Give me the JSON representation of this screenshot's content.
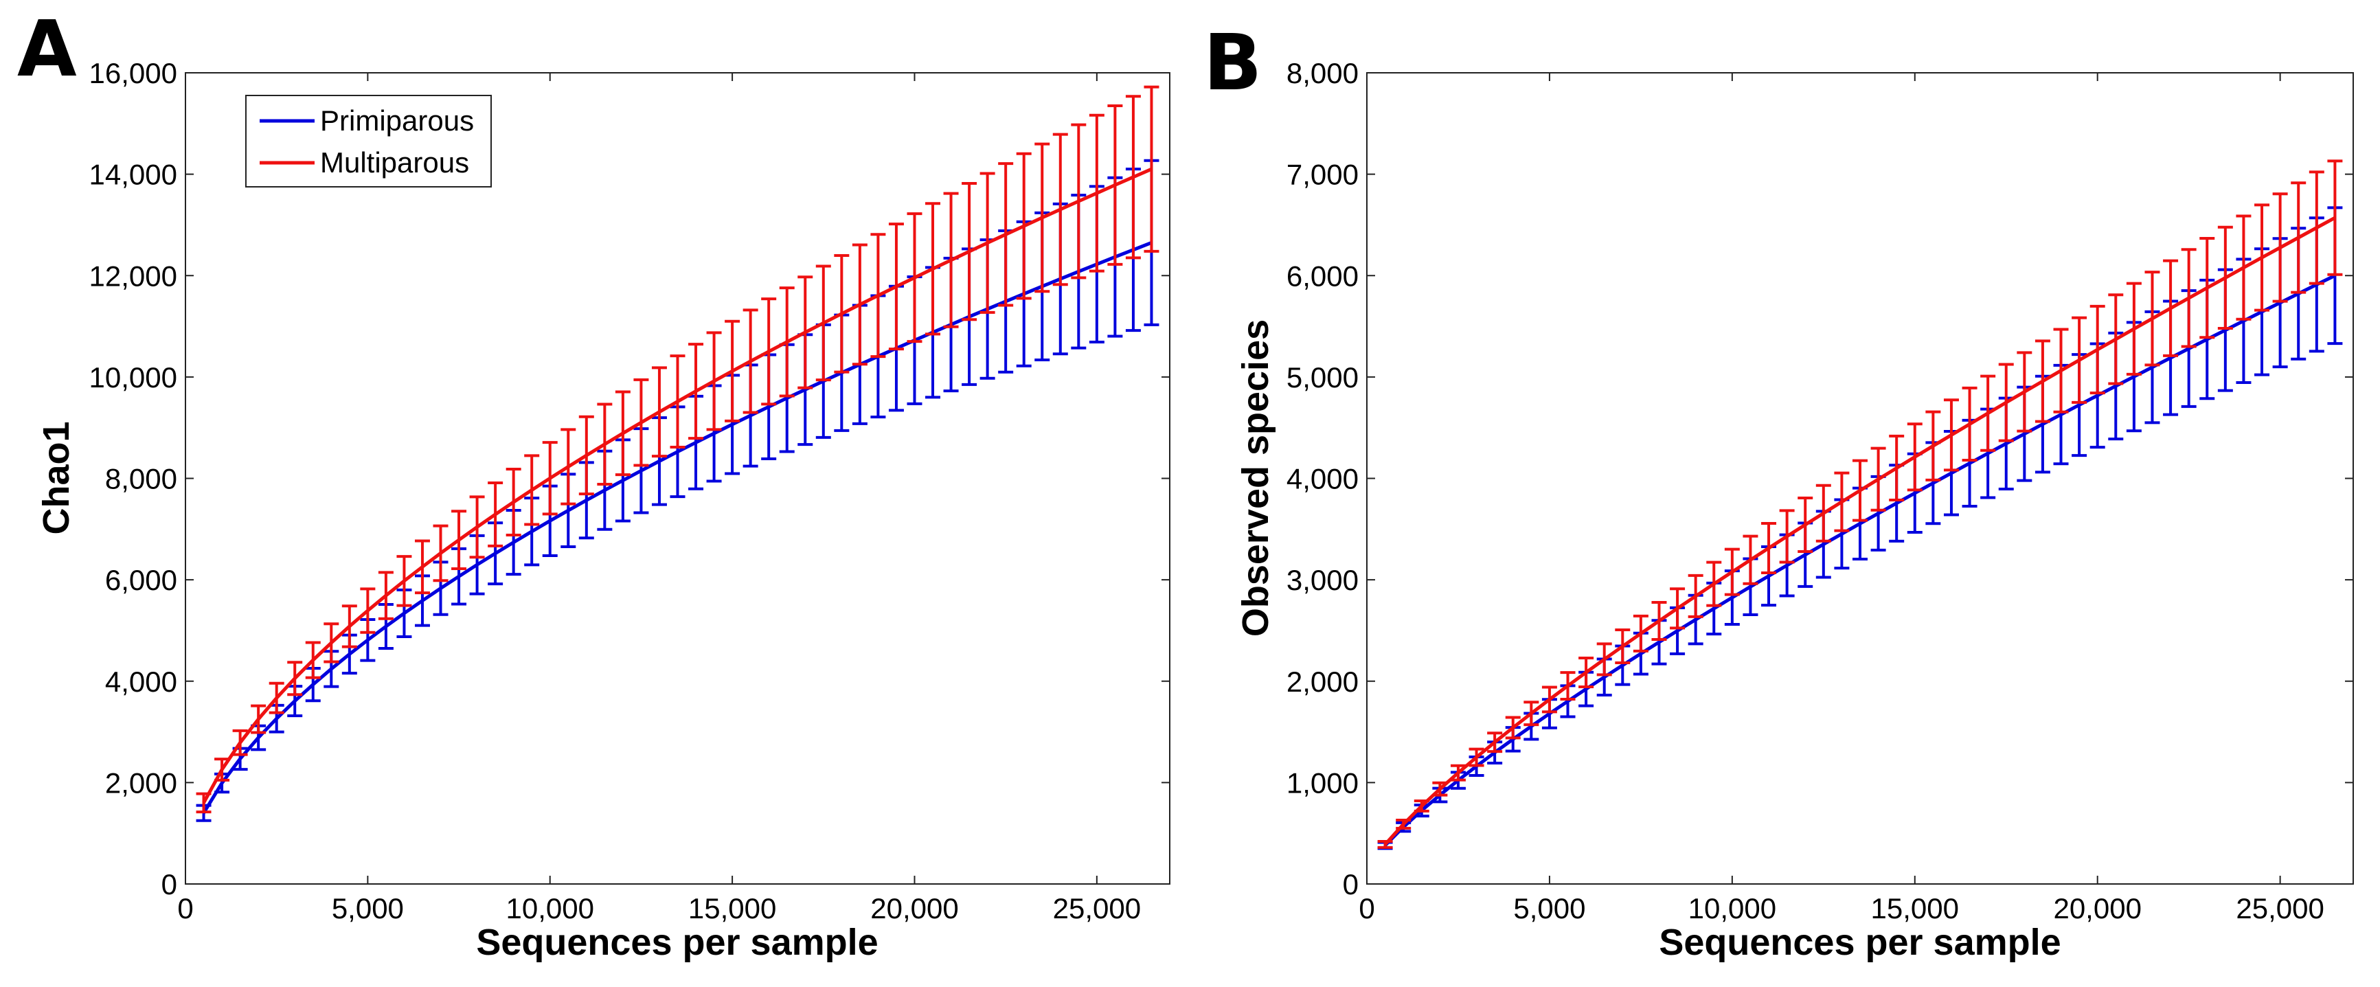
{
  "colors": {
    "primiparous": "#0000dd",
    "multiparous": "#ee1111"
  },
  "chart_data": [
    {
      "type": "line",
      "panel_label": "A",
      "title": "",
      "xlabel": "Sequences per sample",
      "ylabel": "Chao1",
      "xlim": [
        0,
        27000
      ],
      "ylim": [
        0,
        16000
      ],
      "xticks": [
        0,
        5000,
        10000,
        15000,
        20000,
        25000
      ],
      "xtick_labels": [
        "0",
        "5,000",
        "10,000",
        "15,000",
        "20,000",
        "25,000"
      ],
      "yticks": [
        0,
        2000,
        4000,
        6000,
        8000,
        10000,
        12000,
        14000,
        16000
      ],
      "ytick_labels": [
        "0",
        "2,000",
        "4,000",
        "6,000",
        "8,000",
        "10,000",
        "12,000",
        "14,000",
        "16,000"
      ],
      "grid": false,
      "legend": {
        "placement": "top-left",
        "entries": [
          "Primiparous",
          "Multiparous"
        ]
      },
      "x_start": 500,
      "x_step": 500,
      "points": 53,
      "series": [
        {
          "name": "Primiparous",
          "color_key": "primiparous",
          "y_start": 1400,
          "y_end": 12650,
          "shape": 0.6,
          "err_start": 150,
          "err_end": 1620
        },
        {
          "name": "Multiparous",
          "color_key": "multiparous",
          "y_start": 1600,
          "y_end": 14100,
          "shape": 0.6,
          "err_start": 180,
          "err_end": 1620
        }
      ]
    },
    {
      "type": "line",
      "panel_label": "B",
      "title": "",
      "xlabel": "Sequences per sample",
      "ylabel": "Observed species",
      "xlim": [
        0,
        27000
      ],
      "ylim": [
        0,
        8000
      ],
      "xticks": [
        0,
        5000,
        10000,
        15000,
        20000,
        25000
      ],
      "xtick_labels": [
        "0",
        "5,000",
        "10,000",
        "15,000",
        "20,000",
        "25,000"
      ],
      "yticks": [
        0,
        1000,
        2000,
        3000,
        4000,
        5000,
        6000,
        7000,
        8000
      ],
      "ytick_labels": [
        "0",
        "1,000",
        "2,000",
        "3,000",
        "4,000",
        "5,000",
        "6,000",
        "7,000",
        "8,000"
      ],
      "grid": false,
      "legend": null,
      "x_start": 500,
      "x_step": 500,
      "points": 53,
      "series": [
        {
          "name": "Primiparous",
          "color_key": "primiparous",
          "y_start": 380,
          "y_end": 6000,
          "shape": 0.8,
          "err_start": 30,
          "err_end": 670
        },
        {
          "name": "Multiparous",
          "color_key": "multiparous",
          "y_start": 390,
          "y_end": 6570,
          "shape": 0.8,
          "err_start": 30,
          "err_end": 560
        }
      ]
    }
  ]
}
